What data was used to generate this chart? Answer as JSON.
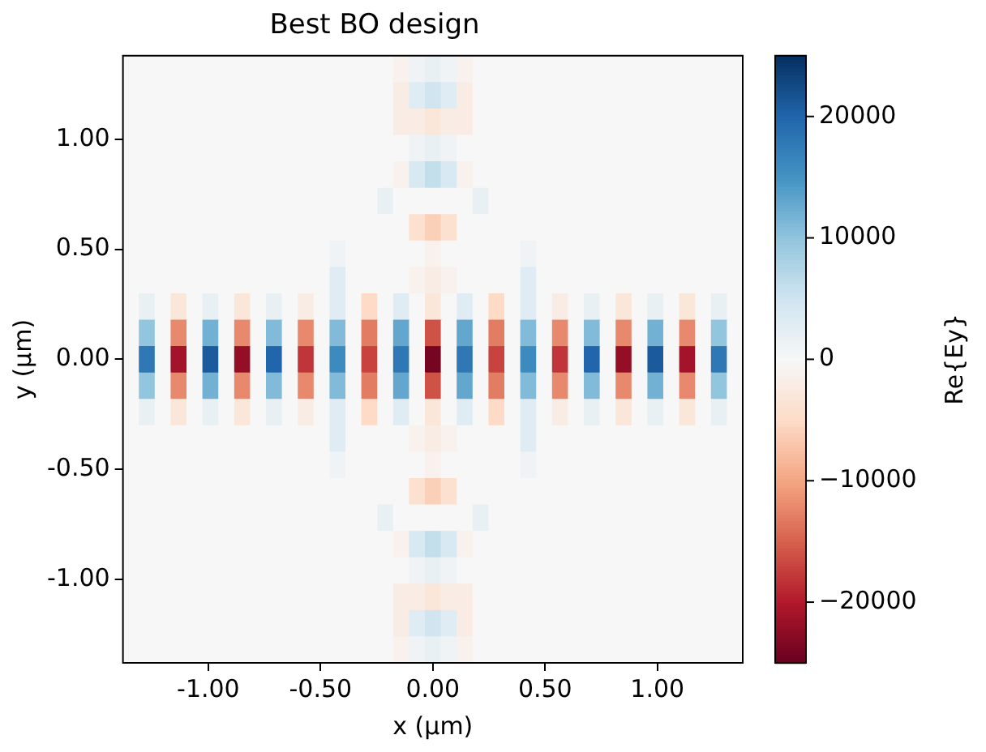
{
  "chart_data": {
    "type": "heatmap",
    "title": "Best BO design",
    "xlabel": "x (µm)",
    "ylabel": "y (µm)",
    "clabel": "Re{Ey}",
    "xlim": [
      -1.38,
      1.38
    ],
    "ylim": [
      -1.38,
      1.38
    ],
    "xticks": [
      {
        "value": -1,
        "label": "-1.00"
      },
      {
        "value": -0.5,
        "label": "-0.50"
      },
      {
        "value": 0,
        "label": "0.00"
      },
      {
        "value": 0.5,
        "label": "0.50"
      },
      {
        "value": 1,
        "label": "1.00"
      }
    ],
    "yticks": [
      {
        "value": -1,
        "label": "-1.00"
      },
      {
        "value": -0.5,
        "label": "-0.50"
      },
      {
        "value": 0,
        "label": "0.00"
      },
      {
        "value": 0.5,
        "label": "0.50"
      },
      {
        "value": 1,
        "label": "1.00"
      }
    ],
    "clim": [
      -25000,
      25000
    ],
    "cticks": [
      {
        "value": -20000,
        "label": "−20000"
      },
      {
        "value": -10000,
        "label": "−10000"
      },
      0,
      10000,
      20000
    ],
    "cells": [
      [
        0,
        0,
        0,
        0,
        0,
        0,
        0,
        0,
        0,
        0,
        0,
        0,
        0,
        0,
        0,
        0,
        0,
        -1000,
        1000,
        2000,
        1000,
        -1000,
        0,
        0,
        0,
        0,
        0,
        0,
        0,
        0,
        0,
        0,
        0,
        0,
        0,
        0,
        0,
        0,
        0
      ],
      [
        0,
        0,
        0,
        0,
        0,
        0,
        0,
        0,
        0,
        0,
        0,
        0,
        0,
        0,
        0,
        0,
        0,
        -2000,
        3000,
        5000,
        3000,
        -2000,
        0,
        0,
        0,
        0,
        0,
        0,
        0,
        0,
        0,
        0,
        0,
        0,
        0,
        0,
        0,
        0,
        0
      ],
      [
        0,
        0,
        0,
        0,
        0,
        0,
        0,
        0,
        0,
        0,
        0,
        0,
        0,
        0,
        0,
        0,
        0,
        -2000,
        -2000,
        -3000,
        -2000,
        -2000,
        0,
        0,
        0,
        0,
        0,
        0,
        0,
        0,
        0,
        0,
        0,
        0,
        0,
        0,
        0,
        0,
        0
      ],
      [
        0,
        0,
        0,
        0,
        0,
        0,
        0,
        0,
        0,
        0,
        0,
        0,
        0,
        0,
        0,
        0,
        0,
        0,
        1000,
        2000,
        1000,
        0,
        0,
        0,
        0,
        0,
        0,
        0,
        0,
        0,
        0,
        0,
        0,
        0,
        0,
        0,
        0,
        0,
        0
      ],
      [
        0,
        0,
        0,
        0,
        0,
        0,
        0,
        0,
        0,
        0,
        0,
        0,
        0,
        0,
        0,
        0,
        0,
        -1000,
        4000,
        6000,
        4000,
        -1000,
        0,
        0,
        0,
        0,
        0,
        0,
        0,
        0,
        0,
        0,
        0,
        0,
        0,
        0,
        0,
        0,
        0
      ],
      [
        0,
        0,
        0,
        0,
        0,
        0,
        0,
        0,
        0,
        0,
        0,
        0,
        0,
        0,
        0,
        0,
        2000,
        0,
        0,
        0,
        0,
        0,
        2000,
        0,
        0,
        0,
        0,
        0,
        0,
        0,
        0,
        0,
        0,
        0,
        0,
        0,
        0,
        0,
        0
      ],
      [
        0,
        0,
        0,
        0,
        0,
        0,
        0,
        0,
        0,
        0,
        0,
        0,
        0,
        0,
        0,
        0,
        0,
        0,
        -4000,
        -6000,
        -4000,
        0,
        0,
        0,
        0,
        0,
        0,
        0,
        0,
        0,
        0,
        0,
        0,
        0,
        0,
        0,
        0,
        0,
        0
      ],
      [
        0,
        0,
        0,
        0,
        0,
        0,
        0,
        0,
        0,
        0,
        0,
        0,
        0,
        1000,
        0,
        0,
        0,
        0,
        0,
        -1000,
        0,
        0,
        0,
        0,
        0,
        1000,
        0,
        0,
        0,
        0,
        0,
        0,
        0,
        0,
        0,
        0,
        0,
        0,
        0
      ],
      [
        0,
        0,
        0,
        0,
        0,
        0,
        0,
        0,
        0,
        0,
        0,
        0,
        0,
        3000,
        0,
        0,
        0,
        0,
        -1000,
        -2000,
        -1000,
        0,
        0,
        0,
        0,
        3000,
        0,
        0,
        0,
        0,
        0,
        0,
        0,
        0,
        0,
        0,
        0,
        0,
        0
      ],
      [
        0,
        2000,
        0,
        -3000,
        0,
        2000,
        0,
        -3000,
        0,
        2000,
        0,
        -2000,
        0,
        3000,
        0,
        -5000,
        0,
        3000,
        0,
        -3000,
        0,
        3000,
        0,
        -5000,
        0,
        3000,
        0,
        -2000,
        0,
        2000,
        0,
        -3000,
        0,
        2000,
        0,
        -3000,
        0,
        2000,
        0
      ],
      [
        0,
        10000,
        0,
        -12000,
        0,
        12000,
        0,
        -12000,
        0,
        11000,
        0,
        -12000,
        0,
        11000,
        0,
        -13000,
        0,
        13000,
        0,
        -16000,
        0,
        13000,
        0,
        -13000,
        0,
        11000,
        0,
        -12000,
        0,
        11000,
        0,
        -12000,
        0,
        12000,
        0,
        -12000,
        0,
        10000,
        0
      ],
      [
        0,
        18000,
        0,
        -21000,
        0,
        21000,
        0,
        -22000,
        0,
        20000,
        0,
        -18000,
        0,
        16000,
        0,
        -17000,
        0,
        18000,
        0,
        -24000,
        0,
        18000,
        0,
        -17000,
        0,
        16000,
        0,
        -18000,
        0,
        20000,
        0,
        -22000,
        0,
        21000,
        0,
        -21000,
        0,
        18000,
        0
      ],
      [
        0,
        10000,
        0,
        -12000,
        0,
        12000,
        0,
        -12000,
        0,
        11000,
        0,
        -12000,
        0,
        11000,
        0,
        -13000,
        0,
        13000,
        0,
        -16000,
        0,
        13000,
        0,
        -13000,
        0,
        11000,
        0,
        -12000,
        0,
        11000,
        0,
        -12000,
        0,
        12000,
        0,
        -12000,
        0,
        10000,
        0
      ],
      [
        0,
        2000,
        0,
        -3000,
        0,
        2000,
        0,
        -3000,
        0,
        2000,
        0,
        -2000,
        0,
        3000,
        0,
        -5000,
        0,
        3000,
        0,
        -3000,
        0,
        3000,
        0,
        -5000,
        0,
        3000,
        0,
        -2000,
        0,
        2000,
        0,
        -3000,
        0,
        2000,
        0,
        -3000,
        0,
        2000,
        0
      ],
      [
        0,
        0,
        0,
        0,
        0,
        0,
        0,
        0,
        0,
        0,
        0,
        0,
        0,
        3000,
        0,
        0,
        0,
        0,
        -1000,
        -2000,
        -1000,
        0,
        0,
        0,
        0,
        3000,
        0,
        0,
        0,
        0,
        0,
        0,
        0,
        0,
        0,
        0,
        0,
        0,
        0
      ],
      [
        0,
        0,
        0,
        0,
        0,
        0,
        0,
        0,
        0,
        0,
        0,
        0,
        0,
        1000,
        0,
        0,
        0,
        0,
        0,
        -1000,
        0,
        0,
        0,
        0,
        0,
        1000,
        0,
        0,
        0,
        0,
        0,
        0,
        0,
        0,
        0,
        0,
        0,
        0,
        0
      ],
      [
        0,
        0,
        0,
        0,
        0,
        0,
        0,
        0,
        0,
        0,
        0,
        0,
        0,
        0,
        0,
        0,
        0,
        0,
        -4000,
        -6000,
        -4000,
        0,
        0,
        0,
        0,
        0,
        0,
        0,
        0,
        0,
        0,
        0,
        0,
        0,
        0,
        0,
        0,
        0,
        0
      ],
      [
        0,
        0,
        0,
        0,
        0,
        0,
        0,
        0,
        0,
        0,
        0,
        0,
        0,
        0,
        0,
        0,
        2000,
        0,
        0,
        0,
        0,
        0,
        2000,
        0,
        0,
        0,
        0,
        0,
        0,
        0,
        0,
        0,
        0,
        0,
        0,
        0,
        0,
        0,
        0
      ],
      [
        0,
        0,
        0,
        0,
        0,
        0,
        0,
        0,
        0,
        0,
        0,
        0,
        0,
        0,
        0,
        0,
        0,
        -1000,
        4000,
        6000,
        4000,
        -1000,
        0,
        0,
        0,
        0,
        0,
        0,
        0,
        0,
        0,
        0,
        0,
        0,
        0,
        0,
        0,
        0,
        0
      ],
      [
        0,
        0,
        0,
        0,
        0,
        0,
        0,
        0,
        0,
        0,
        0,
        0,
        0,
        0,
        0,
        0,
        0,
        0,
        1000,
        2000,
        1000,
        0,
        0,
        0,
        0,
        0,
        0,
        0,
        0,
        0,
        0,
        0,
        0,
        0,
        0,
        0,
        0,
        0,
        0
      ],
      [
        0,
        0,
        0,
        0,
        0,
        0,
        0,
        0,
        0,
        0,
        0,
        0,
        0,
        0,
        0,
        0,
        0,
        -2000,
        -2000,
        -3000,
        -2000,
        -2000,
        0,
        0,
        0,
        0,
        0,
        0,
        0,
        0,
        0,
        0,
        0,
        0,
        0,
        0,
        0,
        0,
        0
      ],
      [
        0,
        0,
        0,
        0,
        0,
        0,
        0,
        0,
        0,
        0,
        0,
        0,
        0,
        0,
        0,
        0,
        0,
        -2000,
        3000,
        5000,
        3000,
        -2000,
        0,
        0,
        0,
        0,
        0,
        0,
        0,
        0,
        0,
        0,
        0,
        0,
        0,
        0,
        0,
        0,
        0
      ],
      [
        0,
        0,
        0,
        0,
        0,
        0,
        0,
        0,
        0,
        0,
        0,
        0,
        0,
        0,
        0,
        0,
        0,
        -1000,
        1000,
        2000,
        1000,
        -1000,
        0,
        0,
        0,
        0,
        0,
        0,
        0,
        0,
        0,
        0,
        0,
        0,
        0,
        0,
        0,
        0,
        0
      ]
    ]
  }
}
